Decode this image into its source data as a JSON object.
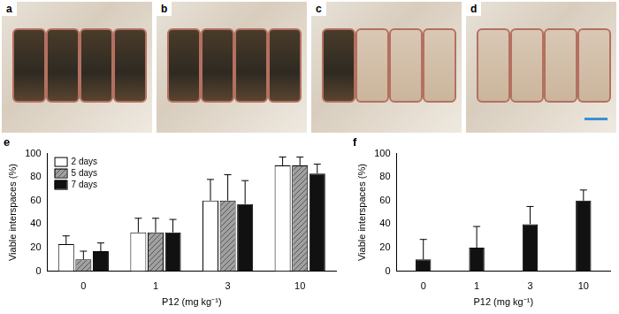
{
  "photos": [
    "a",
    "b",
    "c",
    "d"
  ],
  "chart_data": [
    {
      "type": "bar",
      "title": "e",
      "x_label": "P12 (mg kg⁻¹)",
      "y_label": "Viable interspaces (%)",
      "categories": [
        "0",
        "1",
        "3",
        "10"
      ],
      "series": [
        {
          "name": "2 days",
          "color": "#ffffff",
          "values": [
            23,
            33,
            60,
            90
          ],
          "errors": [
            7,
            12,
            18,
            7
          ]
        },
        {
          "name": "5 days",
          "color": "#a0a0a0",
          "values": [
            10,
            33,
            60,
            90
          ],
          "errors": [
            7,
            12,
            22,
            7
          ]
        },
        {
          "name": "7 days",
          "color": "#111111",
          "values": [
            17,
            33,
            57,
            83
          ],
          "errors": [
            7,
            11,
            20,
            8
          ]
        }
      ],
      "ylim": [
        0,
        100
      ],
      "yticks": [
        0,
        20,
        40,
        60,
        80,
        100
      ],
      "grid": false,
      "legend": "upper left"
    },
    {
      "type": "bar",
      "title": "f",
      "x_label": "P12 (mg kg⁻¹)",
      "y_label": "Viable interspaces (%)",
      "categories": [
        "0",
        "1",
        "3",
        "10"
      ],
      "series": [
        {
          "color": "#111111",
          "values": [
            10,
            20,
            40,
            60
          ],
          "errors": [
            17,
            18,
            15,
            9
          ]
        }
      ],
      "ylim": [
        0,
        100
      ],
      "yticks": [
        0,
        20,
        40,
        60,
        80,
        100
      ],
      "grid": false
    }
  ]
}
